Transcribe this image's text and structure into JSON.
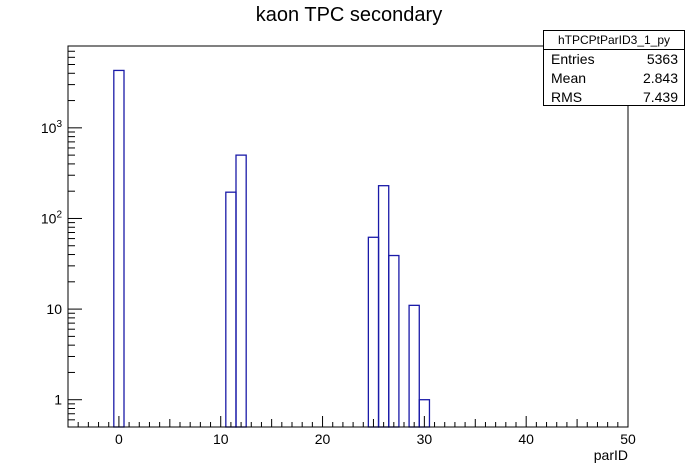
{
  "chart_data": {
    "type": "bar",
    "title": "kaon TPC secondary",
    "xlabel": "parID",
    "ylabel": "",
    "xlim": [
      -5,
      50
    ],
    "ylim": [
      0.5,
      8000
    ],
    "yscale": "log",
    "bin_width": 1,
    "bins": [
      {
        "x": 0,
        "y": 4300
      },
      {
        "x": 11,
        "y": 195
      },
      {
        "x": 12,
        "y": 500
      },
      {
        "x": 25,
        "y": 62
      },
      {
        "x": 26,
        "y": 230
      },
      {
        "x": 27,
        "y": 39
      },
      {
        "x": 29,
        "y": 11
      },
      {
        "x": 30,
        "y": 1
      }
    ],
    "x_ticks": [
      "0",
      "10",
      "20",
      "30",
      "40",
      "50"
    ],
    "y_ticks": [
      {
        "value": 1,
        "base": "1",
        "exp": ""
      },
      {
        "value": 10,
        "base": "10",
        "exp": ""
      },
      {
        "value": 100,
        "base": "10",
        "exp": "2"
      },
      {
        "value": 1000,
        "base": "10",
        "exp": "3"
      }
    ],
    "line_color": "#1a1aa8",
    "grid": false,
    "stats_box": {
      "name": "hTPCPtParID3_1_py",
      "entries_label": "Entries",
      "entries": "5363",
      "mean_label": "Mean",
      "mean": "2.843",
      "rms_label": "RMS",
      "rms": "7.439"
    }
  }
}
